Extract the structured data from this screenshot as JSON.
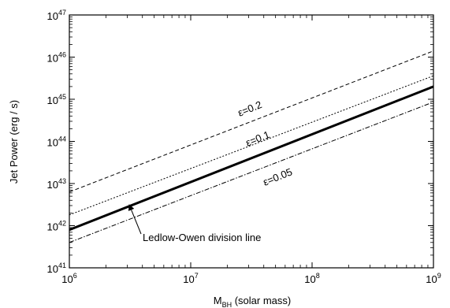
{
  "chart_data": {
    "type": "line",
    "xscale": "log",
    "yscale": "log",
    "xlim": [
      1000000,
      1000000000
    ],
    "ylim": [
      1e+41,
      1e+47
    ],
    "xlabel": {
      "main": "M",
      "sub": "BH",
      "rest": " (solar mass)"
    },
    "ylabel": "Jet Power  (erg / s)",
    "x_ticks": [
      {
        "base": "10",
        "exp": "6"
      },
      {
        "base": "10",
        "exp": "7"
      },
      {
        "base": "10",
        "exp": "8"
      },
      {
        "base": "10",
        "exp": "9"
      }
    ],
    "y_ticks": [
      {
        "base": "10",
        "exp": "41"
      },
      {
        "base": "10",
        "exp": "42"
      },
      {
        "base": "10",
        "exp": "43"
      },
      {
        "base": "10",
        "exp": "44"
      },
      {
        "base": "10",
        "exp": "45"
      },
      {
        "base": "10",
        "exp": "46"
      },
      {
        "base": "10",
        "exp": "47"
      }
    ],
    "series": [
      {
        "key": "eps02",
        "style": "dashed",
        "label": "ε=0.2",
        "x": [
          1000000,
          1000000000
        ],
        "y": [
          6.3e+42,
          1.4e+46
        ]
      },
      {
        "key": "eps01",
        "style": "dotted",
        "label": "ε=0.1",
        "x": [
          1000000,
          1000000000
        ],
        "y": [
          1.8e+42,
          3.6e+45
        ]
      },
      {
        "key": "ledlow",
        "style": "solid-thick",
        "x": [
          1000000,
          1000000000
        ],
        "y": [
          8e+41,
          2e+45
        ]
      },
      {
        "key": "eps005",
        "style": "dashdot",
        "label": "ε=0.05",
        "x": [
          1000000,
          1000000000
        ],
        "y": [
          4e+41,
          8.6e+44
        ]
      }
    ],
    "annotations": [
      {
        "key": "ledlow-arrow",
        "text": "Ledlow-Owen division line",
        "points_to": {
          "x": 3200000,
          "y": 2.7e+42
        }
      }
    ],
    "grid": false
  }
}
